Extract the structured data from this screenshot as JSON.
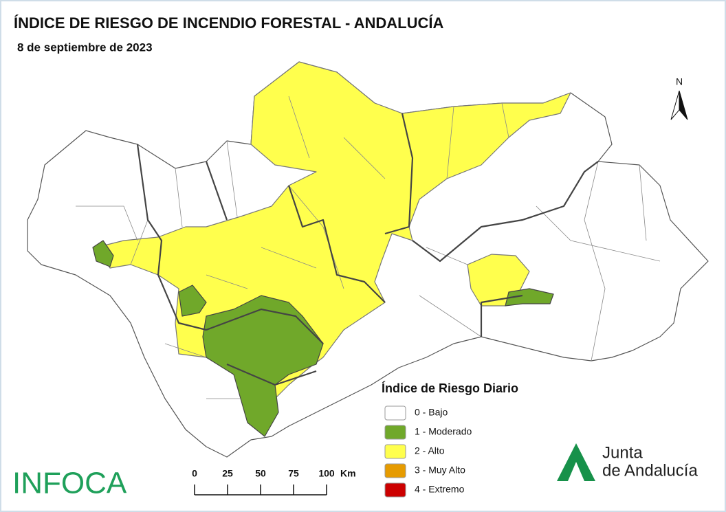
{
  "header": {
    "title": "ÍNDICE DE RIESGO DE INCENDIO FORESTAL - ANDALUCÍA",
    "subtitle": "8 de septiembre de 2023"
  },
  "legend": {
    "title": "Índice de Riesgo Diario",
    "items": [
      {
        "label": "0 - Bajo",
        "color": "#ffffff"
      },
      {
        "label": "1 - Moderado",
        "color": "#70a82a"
      },
      {
        "label": "2 - Alto",
        "color": "#ffff4d"
      },
      {
        "label": "3 - Muy Alto",
        "color": "#e69b00"
      },
      {
        "label": "4 - Extremo",
        "color": "#cc0000"
      }
    ]
  },
  "scale_bar": {
    "ticks": [
      0,
      25,
      50,
      75,
      100
    ],
    "unit": "Km"
  },
  "north": "N",
  "logos": {
    "infoca": "INFOCA",
    "junta": [
      "Junta",
      "de Andalucía"
    ]
  }
}
